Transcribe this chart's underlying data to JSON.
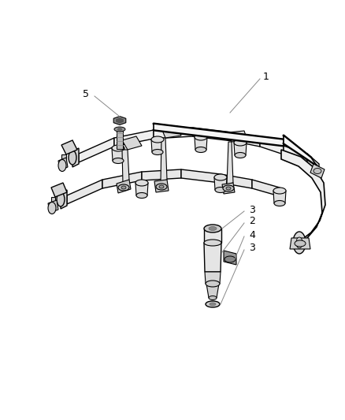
{
  "background_color": "#ffffff",
  "fig_width": 4.39,
  "fig_height": 5.33,
  "dpi": 100,
  "lc": "#000000",
  "lw_rail": 1.5,
  "lw_thin": 0.8,
  "lw_label": 0.6,
  "font_size": 9,
  "rail_fill": "#f0f0f0",
  "bracket_fill": "#e0e0e0",
  "port_fill": "#d8d8d8",
  "bolt_fill": "#888888",
  "inj_fill": "#e8e8e8",
  "pipe_lw": 2.0
}
